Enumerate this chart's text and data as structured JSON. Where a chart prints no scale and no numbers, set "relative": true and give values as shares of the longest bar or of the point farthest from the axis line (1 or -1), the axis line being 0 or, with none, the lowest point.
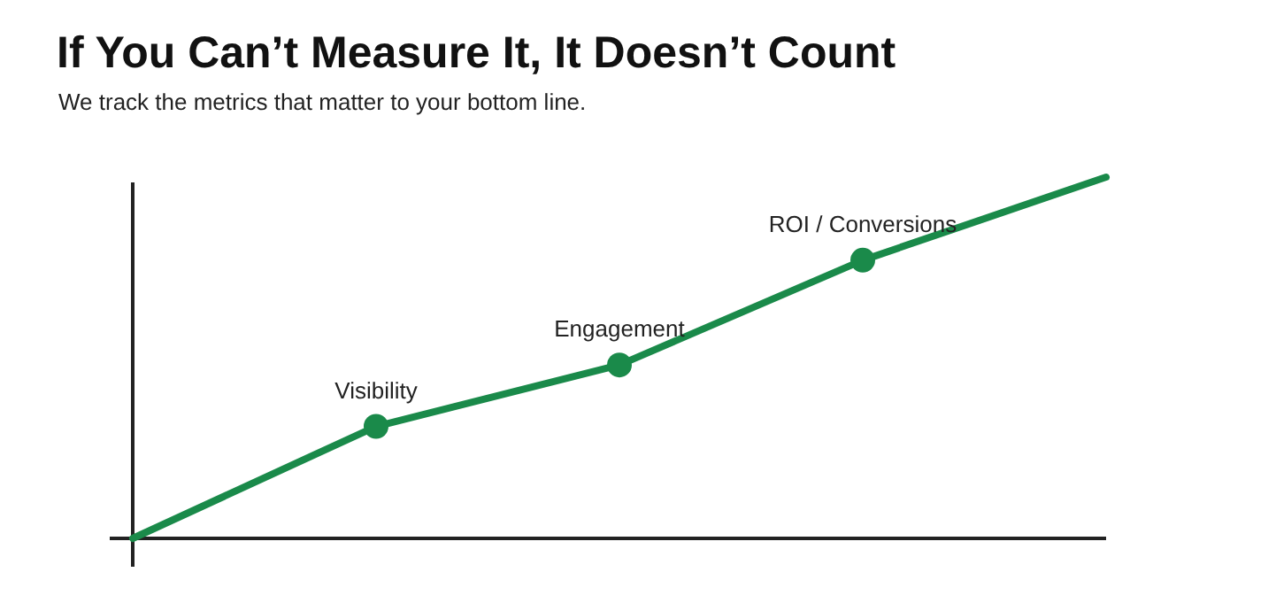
{
  "chart_data": {
    "type": "line",
    "title": "If You Can’t Measure It, It Doesn’t Count",
    "subtitle": "We track the metrics that matter to your bottom line.",
    "categories": [
      null,
      "Visibility",
      "Engagement",
      "ROI / Conversions",
      null
    ],
    "relative": true,
    "marker": "circle",
    "grid": false,
    "series": [
      {
        "color": "#1a8a4a",
        "values": [
          0,
          0.31,
          0.48,
          0.77,
          1
        ]
      }
    ]
  }
}
